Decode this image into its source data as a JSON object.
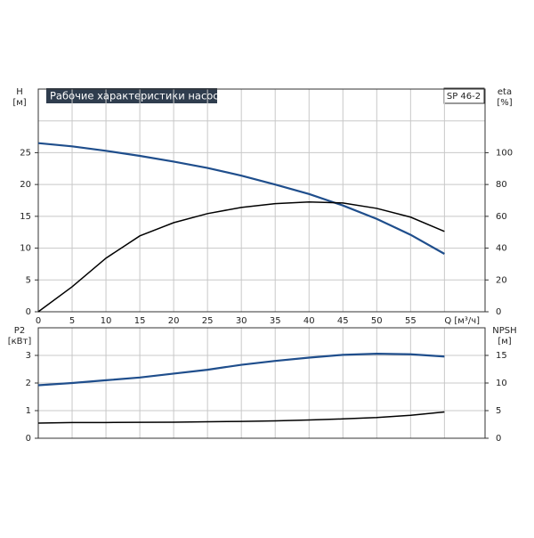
{
  "chart_data": [
    {
      "type": "line",
      "title": "Рабочие характеристики насоса",
      "subtitle": "SP 46-2",
      "y_label": "H",
      "y_unit": "[м]",
      "y2_label": "eta",
      "y2_unit": "[%]",
      "x": [
        0,
        5,
        10,
        15,
        20,
        25,
        30,
        35,
        40,
        45,
        50,
        55,
        60
      ],
      "xlim": [
        0,
        66
      ],
      "xticks": [
        0,
        5,
        10,
        15,
        20,
        25,
        30,
        35,
        40,
        45,
        50,
        55,
        {
          "value": 60,
          "label": "Q [м³/ч]"
        }
      ],
      "ylim": [
        0,
        35
      ],
      "yticks": [
        0,
        5,
        10,
        15,
        20,
        25
      ],
      "y2lim": [
        0,
        140
      ],
      "y2ticks": [
        0,
        20,
        40,
        60,
        80,
        100
      ],
      "grid": true,
      "series": [
        {
          "name": "H",
          "color": "#1f4e8c",
          "values": [
            26.5,
            26.0,
            25.3,
            24.5,
            23.6,
            22.6,
            21.4,
            20.0,
            18.5,
            16.7,
            14.6,
            12.1,
            9.1
          ]
        },
        {
          "name": "eta",
          "color": "#000000",
          "axis": "y2",
          "values": [
            0,
            15.7,
            33.7,
            47.7,
            56,
            61.7,
            65.6,
            68,
            69,
            68.4,
            65,
            59.5,
            50.5
          ]
        }
      ]
    },
    {
      "type": "line",
      "y_label": "P2",
      "y_unit": "[кВт]",
      "y2_label": "NPSH",
      "y2_unit": "[м]",
      "x": [
        0,
        5,
        10,
        15,
        20,
        25,
        30,
        35,
        40,
        45,
        50,
        55,
        60
      ],
      "xlim": [
        0,
        66
      ],
      "xticks": [
        0,
        5,
        10,
        15,
        20,
        25,
        30,
        35,
        40,
        45,
        50,
        55,
        60
      ],
      "ylim": [
        0,
        4
      ],
      "yticks": [
        0,
        1,
        2,
        3
      ],
      "y2lim": [
        0,
        20
      ],
      "y2ticks": [
        0,
        5,
        10,
        15
      ],
      "grid": true,
      "series": [
        {
          "name": "P2",
          "color": "#000000",
          "values": [
            0.55,
            0.57,
            0.57,
            0.575,
            0.58,
            0.595,
            0.61,
            0.63,
            0.66,
            0.7,
            0.75,
            0.83,
            0.95
          ]
        },
        {
          "name": "NPSH",
          "color": "#1f4e8c",
          "axis": "y2",
          "values": [
            9.6,
            10.0,
            10.5,
            11.0,
            11.7,
            12.4,
            13.3,
            14.0,
            14.6,
            15.1,
            15.3,
            15.2,
            14.8
          ]
        }
      ]
    }
  ]
}
